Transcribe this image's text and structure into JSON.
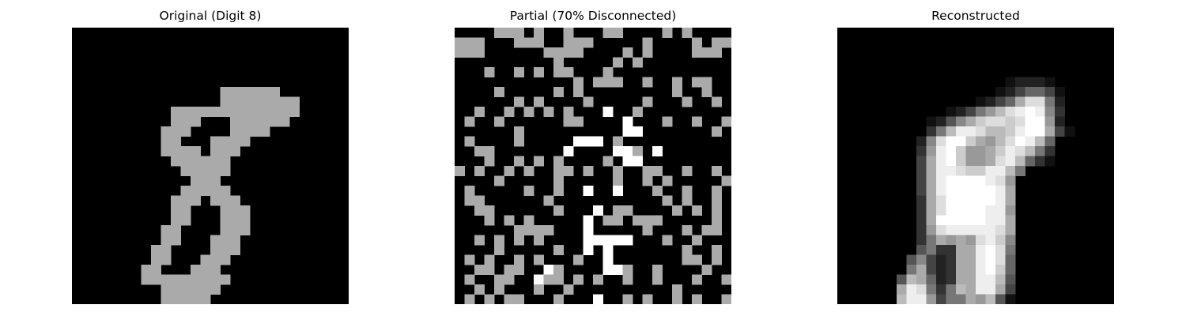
{
  "figure": {
    "panels": [
      {
        "title": "Original (Digit 8)",
        "rows": [
          "............................",
          "............................",
          "............................",
          "............................",
          "............................",
          "............................",
          "...............AAAAAA.......",
          "...............AAAAAAAA.....",
          "..........AAAAAAAAAAAAA.....",
          "..........AAA...AAAAAA......",
          ".........AAA....AAAA........",
          ".........AA...AAAA..........",
          ".........AAAA.AAA...........",
          "..........AAAAAA............",
          "...........AAAAA............",
          "............AAA.............",
          "...........AAAAA............",
          "..........AAA.AAA...........",
          "..........AA...AAA..........",
          "..........AA...AAA..........",
          ".........AA....AAA..........",
          ".........AA...AAA...........",
          "........AA....AAA...........",
          "........AA...AAA............",
          ".......AA...AAA.............",
          ".......AAAAAAAAA............",
          ".........AAAAAA.............",
          ".........AAAAA..............",
          "............................"
        ]
      },
      {
        "title": "Partial (70% Disconnected)",
        "rows": [
          "....AAA.A..A...AA....A.A....",
          "AAA...AAA..AAA.....A....A.AA",
          "AAA......AAAA....A.A....AAA.",
          "..........A.....A.A.........",
          "...A..A.A.AA...A............",
          "............A.AAA..A..A.AA..",
          "....A.....A.A.........A..A..",
          "......A.A....A.....A...A..A.",
          "..A..A.A.A.A...F..A.........",
          ".A..A......AA....F...A..A..A",
          "......A..........FF.......A.",
          ".A....A.....FFF.A...........",
          "..AA.......F....FFA.F.......",
          "...A..A.A.A....A.FF.........",
          "A.A..A.A..AA.A..A..AA..A..A.",
          "....A.....A.....A..A.A.....A",
          ".A.....A..A..F..F...A..A..A.",
          ".AA......A...........A.A..A.",
          "..AA......A...F.AA....A.A.A.",
          "...A.A.A.....F.AA.AAA.....A.",
          "......AAAA...F.....A...A.AA.",
          "..A.A.A.A....FFFFF...A..A...",
          "....A.....A..F.F.......A..A.",
          ".A.A..A.A...A..F.......AA.A.",
          "..AA.AA..FA....FFA..A....A..",
          ".A..AA..FAA.A.A..A..A...A..A",
          "..A.A...A..A..........A.....",
          ".A.A.AA...A...F..A.A..A.A..A",
          ".A.....F...A.....A.....A...A",
          "AAAAA..A.....F.A.AAA.AAAAAA.",
          "..AA..A.A...A...A..A..AA.A.A",
          "AAA..A..........A..AA.A...A.",
          "AAAA..A..A.A.AA.A.....A.A...",
          ".A.AA..AA...AA..AAA..AA.A...",
          "..AAA..A......AAA....AA.A..."
        ]
      },
      {
        "title": "Reconstructed",
        "rows": [
          "............................",
          "............................",
          "............................",
          "............................",
          "............................",
          ".................12221......",
          "................1246641.....",
          "..............1246ADD72.....",
          "...........12479BDEFE83.....",
          ".........1258ACDDCDFF92.....",
          ".........37BEEDBBCEFFA41....",
          "........28DFFCA9BDFEB6......",
          "........39EFC99ACEDB73......",
          "........4AEFC99ADEB631......",
          "........4AEEDCCEEB7.........",
          "........4AEFFFFED9..........",
          "........4AEFFFFFEA..........",
          "........3ADFFFFFEA..........",
          "........3ADFFFFEE9..........",
          "........3AFFFFFEEA..........",
          "........39DEEEEEDA..........",
          "........37A9A9DEC8..........",
          "........5733AAEFD7..........",
          ".......58423AAEFD6..........",
          ".......7A423AAEFC6..........",
          "......5BA623AAEEB5..........",
          "......AED737BAEEA4..........",
          "......BEE9477A9B51..........",
          "......8BB741233311..........",
          "......15531.................",
          "............................"
        ]
      }
    ]
  }
}
